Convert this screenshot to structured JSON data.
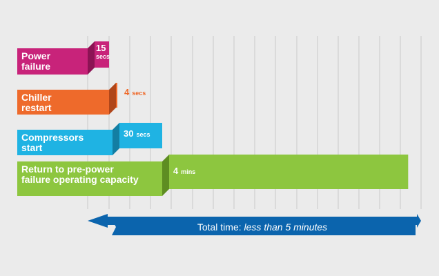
{
  "chart_data": {
    "type": "bar",
    "title": "",
    "xlabel": "",
    "ylabel": "",
    "x_unit": "seconds",
    "xlim": [
      0,
      300
    ],
    "grid": true,
    "stages": [
      {
        "name_lines": [
          "Power",
          "failure"
        ],
        "value_big": "15",
        "value_small": "secs",
        "start": 0,
        "duration": 15,
        "color": "#c8237a",
        "fold_color": "#8c1354",
        "tag_color": "#ffffff",
        "tag_inside": true
      },
      {
        "name_lines": [
          "Chiller",
          "restart"
        ],
        "value_big": "4",
        "value_small": "secs",
        "start": 15,
        "duration": 4,
        "color": "#ee6a2b",
        "fold_color": "#b0461a",
        "tag_color": "#ee6a2b",
        "tag_inside": false
      },
      {
        "name_lines": [
          "Compressors",
          "start"
        ],
        "value_big": "30",
        "value_small": "secs",
        "start": 19,
        "duration": 30,
        "color": "#1fb3e3",
        "fold_color": "#137ea3",
        "tag_color": "#ffffff",
        "tag_inside": true
      },
      {
        "name_lines": [
          "Return to pre-power",
          "failure operating capacity"
        ],
        "value_big": "4",
        "value_small": "mins",
        "start": 49,
        "duration": 240,
        "color": "#8dc63f",
        "fold_color": "#5e8d22",
        "tag_color": "#ffffff",
        "tag_inside": true
      }
    ],
    "total": {
      "prefix": "Total time: ",
      "emphasis": "less than 5 minutes",
      "color": "#0b64ad"
    }
  }
}
